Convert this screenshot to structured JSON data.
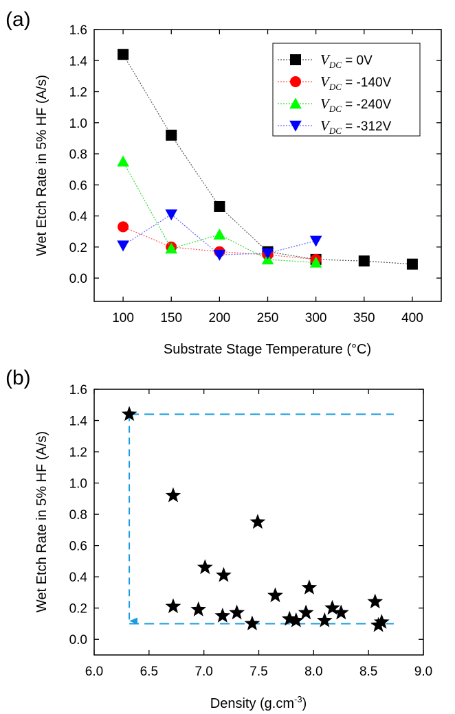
{
  "chart_data": [
    {
      "panel_label": "(a)",
      "type": "line",
      "xlabel": "Substrate Stage Temperature (°C)",
      "ylabel": "Wet Etch Rate in 5% HF (A/s)",
      "xlim": [
        70,
        430
      ],
      "ylim": [
        -0.15,
        1.6
      ],
      "xticks": [
        100,
        150,
        200,
        250,
        300,
        350,
        400
      ],
      "yticks": [
        0.0,
        0.2,
        0.4,
        0.6,
        0.8,
        1.0,
        1.2,
        1.4,
        1.6
      ],
      "grid": false,
      "legend_position": "top-right",
      "series": [
        {
          "var": "V",
          "sub": "DC",
          "suffix": " = 0V",
          "marker": "square",
          "color": "#000000",
          "line_color": "#555555",
          "x": [
            100,
            150,
            200,
            250,
            300,
            350,
            400
          ],
          "y": [
            1.44,
            0.92,
            0.46,
            0.17,
            0.12,
            0.11,
            0.09
          ]
        },
        {
          "var": "V",
          "sub": "DC",
          "suffix": " = -140V",
          "marker": "circle",
          "color": "#ff0000",
          "line_color": "#ff5555",
          "x": [
            100,
            150,
            200,
            250,
            300
          ],
          "y": [
            0.33,
            0.2,
            0.17,
            0.15,
            0.12
          ]
        },
        {
          "var": "V",
          "sub": "DC",
          "suffix": " = -240V",
          "marker": "triangle-up",
          "color": "#00ff00",
          "line_color": "#33dd33",
          "x": [
            100,
            150,
            200,
            250,
            300
          ],
          "y": [
            0.75,
            0.19,
            0.28,
            0.12,
            0.1
          ]
        },
        {
          "var": "V",
          "sub": "DC",
          "suffix": " = -312V",
          "marker": "triangle-down",
          "color": "#0000ff",
          "line_color": "#6666ff",
          "x": [
            100,
            150,
            200,
            250,
            300
          ],
          "y": [
            0.21,
            0.41,
            0.15,
            0.16,
            0.24
          ]
        }
      ]
    },
    {
      "panel_label": "(b)",
      "type": "scatter",
      "xlabel": "Density (g.cm",
      "xlabel_sup": "-3",
      "xlabel_end": ")",
      "ylabel": "Wet Etch Rate in 5% HF (A/s)",
      "xlim": [
        6.0,
        9.0
      ],
      "ylim": [
        -0.1,
        1.6
      ],
      "xticks": [
        6.0,
        6.5,
        7.0,
        7.5,
        8.0,
        8.5,
        9.0
      ],
      "yticks": [
        0.0,
        0.2,
        0.4,
        0.6,
        0.8,
        1.0,
        1.2,
        1.4,
        1.6
      ],
      "grid": false,
      "marker": "star",
      "marker_color": "#000000",
      "points": [
        {
          "x": 6.32,
          "y": 1.44
        },
        {
          "x": 6.72,
          "y": 0.92
        },
        {
          "x": 7.49,
          "y": 0.75
        },
        {
          "x": 7.01,
          "y": 0.46
        },
        {
          "x": 7.18,
          "y": 0.41
        },
        {
          "x": 7.96,
          "y": 0.33
        },
        {
          "x": 7.65,
          "y": 0.28
        },
        {
          "x": 8.56,
          "y": 0.24
        },
        {
          "x": 6.72,
          "y": 0.21
        },
        {
          "x": 6.95,
          "y": 0.19
        },
        {
          "x": 8.17,
          "y": 0.2
        },
        {
          "x": 7.93,
          "y": 0.17
        },
        {
          "x": 8.25,
          "y": 0.17
        },
        {
          "x": 7.3,
          "y": 0.17
        },
        {
          "x": 7.17,
          "y": 0.15
        },
        {
          "x": 7.78,
          "y": 0.13
        },
        {
          "x": 7.84,
          "y": 0.12
        },
        {
          "x": 8.1,
          "y": 0.12
        },
        {
          "x": 8.62,
          "y": 0.11
        },
        {
          "x": 7.44,
          "y": 0.1
        },
        {
          "x": 8.59,
          "y": 0.09
        }
      ],
      "annotations": {
        "color": "#1a9be0",
        "top_line": {
          "x1": 6.32,
          "x2": 8.73,
          "y": 1.44
        },
        "bottom_line": {
          "x1": 6.32,
          "x2": 8.73,
          "y": 0.1
        },
        "arrow": {
          "x": 6.32,
          "y_from": 1.44,
          "y_to": 0.1
        }
      }
    }
  ]
}
